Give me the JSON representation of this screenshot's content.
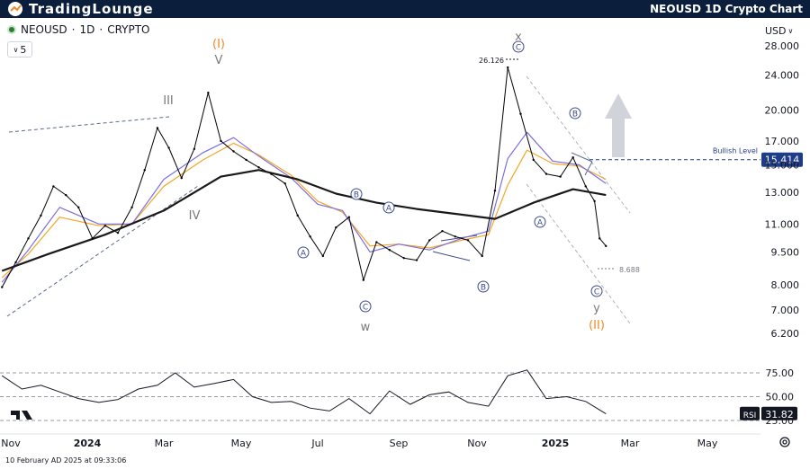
{
  "header": {
    "logo_text": "TradingLounge",
    "title": "NEOUSD 1D Crypto Chart"
  },
  "symbol": {
    "name": "NEOUSD",
    "sep1": "·",
    "interval": "1D",
    "sep2": "·",
    "market": "CRYPTO",
    "counter": "5"
  },
  "currency": "USD",
  "timestamp": "10 February AD 2025 at 09:33:06",
  "colors": {
    "header_bg": "#0b1e3c",
    "candle": "#000000",
    "ma_long": "#1a1a1a",
    "ma_fast": "#7b6fe0",
    "ma_mid": "#f5a623",
    "bullish_level": "#1f3c88",
    "wave_gray": "#7a7a7a",
    "wave_orange": "#f08a24",
    "wave_circle": "#3d4a8c",
    "arrow": "#d0d4da"
  },
  "chart_data": {
    "type": "line",
    "scale": "log",
    "ylim": [
      5.6,
      30.5
    ],
    "y_ticks": [
      "28.000",
      "24.000",
      "20.000",
      "17.000",
      "15.000",
      "13.000",
      "11.000",
      "9.500",
      "8.000",
      "7.000",
      "6.200"
    ],
    "x_ticks": [
      "Nov",
      "2024",
      "Mar",
      "May",
      "Jul",
      "Sep",
      "Nov",
      "2025",
      "Mar",
      "May"
    ],
    "series": [
      {
        "kind": "price_close",
        "x": [
          "2023-10-25",
          "2023-11-05",
          "2023-11-15",
          "2023-11-25",
          "2023-12-05",
          "2023-12-15",
          "2023-12-25",
          "2024-01-05",
          "2024-01-15",
          "2024-01-25",
          "2024-02-05",
          "2024-02-15",
          "2024-02-25",
          "2024-03-05",
          "2024-03-15",
          "2024-03-25",
          "2024-04-05",
          "2024-04-15",
          "2024-04-25",
          "2024-05-05",
          "2024-05-15",
          "2024-05-25",
          "2024-06-05",
          "2024-06-15",
          "2024-06-25",
          "2024-07-05",
          "2024-07-15",
          "2024-07-25",
          "2024-08-05",
          "2024-08-15",
          "2024-08-25",
          "2024-09-05",
          "2024-09-15",
          "2024-09-25",
          "2024-10-05",
          "2024-10-15",
          "2024-10-25",
          "2024-11-05",
          "2024-11-15",
          "2024-11-25",
          "2024-12-05",
          "2024-12-15",
          "2024-12-25",
          "2025-01-05",
          "2025-01-15",
          "2025-01-25",
          "2025-02-01",
          "2025-02-05",
          "2025-02-10"
        ],
        "y": [
          7.9,
          9.0,
          10.2,
          11.5,
          13.4,
          12.8,
          12.0,
          10.2,
          10.9,
          10.5,
          12.0,
          14.6,
          18.2,
          16.4,
          14.0,
          16.3,
          21.9,
          17.0,
          16.1,
          15.4,
          14.8,
          14.3,
          13.6,
          11.5,
          10.3,
          9.3,
          10.8,
          11.4,
          8.2,
          10.0,
          9.6,
          9.2,
          9.1,
          10.1,
          10.6,
          10.3,
          10.1,
          9.3,
          13.1,
          25.0,
          19.6,
          15.4,
          14.3,
          14.1,
          15.6,
          13.4,
          12.4,
          10.2,
          9.8
        ]
      },
      {
        "kind": "ma_long",
        "x": [
          "2023-10-25",
          "2023-12-01",
          "2024-01-15",
          "2024-03-01",
          "2024-04-15",
          "2024-05-15",
          "2024-06-15",
          "2024-07-15",
          "2024-08-15",
          "2024-09-15",
          "2024-10-15",
          "2024-11-15",
          "2024-12-15",
          "2025-01-15",
          "2025-02-10"
        ],
        "y": [
          8.6,
          9.4,
          10.4,
          11.8,
          14.1,
          14.6,
          13.9,
          12.9,
          12.3,
          11.9,
          11.6,
          11.3,
          12.3,
          13.2,
          12.8
        ]
      },
      {
        "kind": "ma_fast",
        "x": [
          "2023-10-25",
          "2023-11-15",
          "2023-12-10",
          "2024-01-10",
          "2024-02-05",
          "2024-03-01",
          "2024-04-01",
          "2024-04-25",
          "2024-05-15",
          "2024-06-10",
          "2024-07-01",
          "2024-07-20",
          "2024-08-10",
          "2024-09-01",
          "2024-09-25",
          "2024-10-20",
          "2024-11-10",
          "2024-11-25",
          "2024-12-10",
          "2024-12-30",
          "2025-01-20",
          "2025-02-10"
        ],
        "y": [
          8.1,
          9.6,
          12.0,
          11.0,
          11.0,
          13.9,
          16.0,
          17.3,
          15.7,
          14.0,
          12.2,
          11.8,
          9.5,
          9.9,
          9.6,
          10.2,
          10.6,
          15.5,
          17.8,
          15.3,
          15.0,
          13.6
        ]
      },
      {
        "kind": "ma_mid",
        "x": [
          "2023-10-25",
          "2023-11-15",
          "2023-12-10",
          "2024-01-10",
          "2024-02-05",
          "2024-03-01",
          "2024-04-01",
          "2024-04-25",
          "2024-05-15",
          "2024-06-10",
          "2024-07-01",
          "2024-07-20",
          "2024-08-10",
          "2024-09-01",
          "2024-09-25",
          "2024-10-20",
          "2024-11-10",
          "2024-11-25",
          "2024-12-10",
          "2024-12-30",
          "2025-01-20",
          "2025-02-10"
        ],
        "y": [
          8.3,
          9.4,
          11.4,
          10.9,
          11.0,
          13.4,
          15.4,
          16.8,
          15.8,
          14.2,
          12.4,
          11.7,
          9.8,
          9.9,
          9.7,
          10.1,
          10.4,
          13.5,
          16.2,
          15.1,
          14.9,
          13.9
        ]
      }
    ],
    "rsi": {
      "ticks": [
        "75.00",
        "50.00",
        "25.00"
      ],
      "current": "31.82",
      "label": "RSI",
      "x": [
        "2023-10-25",
        "2023-11-10",
        "2023-11-25",
        "2023-12-10",
        "2023-12-25",
        "2024-01-10",
        "2024-01-25",
        "2024-02-10",
        "2024-02-25",
        "2024-03-10",
        "2024-03-25",
        "2024-04-10",
        "2024-04-25",
        "2024-05-10",
        "2024-05-25",
        "2024-06-10",
        "2024-06-25",
        "2024-07-10",
        "2024-07-25",
        "2024-08-10",
        "2024-08-25",
        "2024-09-10",
        "2024-09-25",
        "2024-10-10",
        "2024-10-25",
        "2024-11-10",
        "2024-11-25",
        "2024-12-10",
        "2024-12-25",
        "2025-01-10",
        "2025-01-25",
        "2025-02-10"
      ],
      "y": [
        72,
        58,
        62,
        55,
        48,
        44,
        47,
        58,
        62,
        75,
        60,
        64,
        68,
        50,
        44,
        45,
        38,
        35,
        48,
        32,
        56,
        42,
        52,
        55,
        44,
        40,
        72,
        78,
        48,
        50,
        45,
        32
      ]
    },
    "price_labels": {
      "high": "26.126",
      "low": "8.688"
    },
    "bullish_level": {
      "label": "Bullish Level",
      "value": "15.414"
    },
    "waves": {
      "I": "(I)",
      "V": "V",
      "III": "III",
      "IV": "IV",
      "W": "w",
      "X": "x",
      "Y": "y",
      "II": "(II)",
      "A1": "A",
      "B1": "B",
      "C1": "C",
      "A2": "A",
      "B2": "B",
      "A3": "A",
      "B3": "B",
      "C2": "C",
      "C3": "C"
    }
  }
}
